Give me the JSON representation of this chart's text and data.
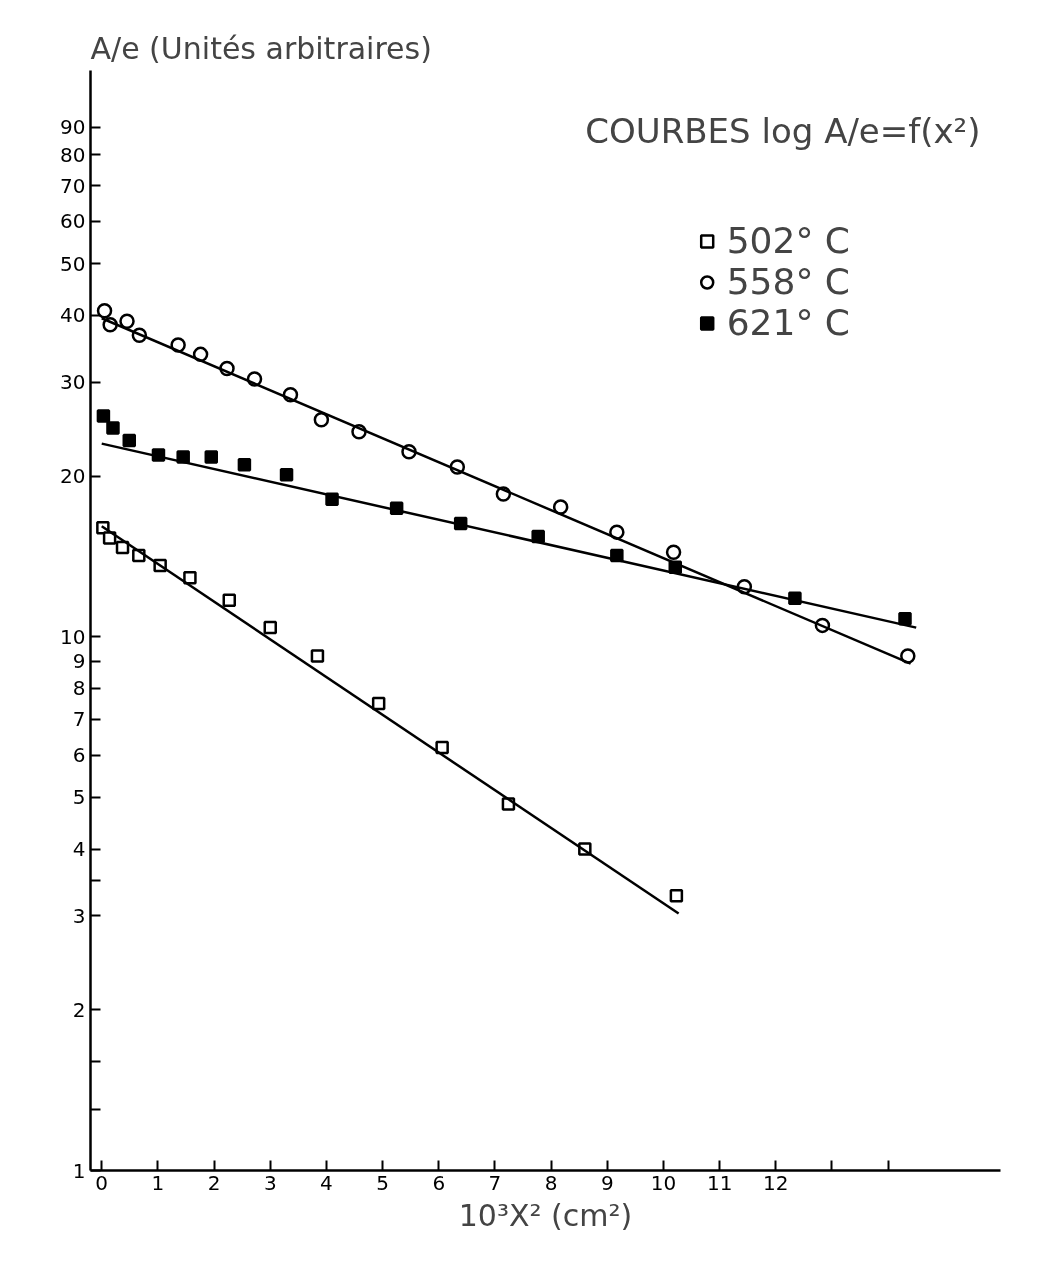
{
  "chart_data": {
    "type": "scatter",
    "title": "COURBES log A/e=f(x²)",
    "xlabel": "10³X² (cm²)",
    "ylabel": "A/e (Unités arbitraires)",
    "log": "y",
    "xlim": [
      -0.2,
      16
    ],
    "ylim": [
      1,
      115
    ],
    "xticks": [
      0,
      1,
      2,
      3,
      4,
      5,
      6,
      7,
      8,
      9,
      10,
      11,
      12,
      {
        "value": 13,
        "label": null
      },
      {
        "value": 14,
        "label": null
      }
    ],
    "yticks": [
      1,
      {
        "value": 1.3,
        "label": null
      },
      {
        "value": 1.6,
        "label": null
      },
      2,
      3,
      {
        "value": 3.5,
        "label": null
      },
      4,
      5,
      6,
      7,
      8,
      9,
      10,
      20,
      30,
      40,
      50,
      60,
      70,
      80,
      90
    ],
    "grid": false,
    "legend": "top right",
    "series": [
      {
        "name": "502° C",
        "color": "#ffffff",
        "marker": "square",
        "x": [
          0.02,
          0.14,
          0.37,
          0.66,
          1.04,
          1.57,
          2.27,
          3.0,
          3.84,
          4.93,
          6.06,
          7.24,
          8.6,
          10.23
        ],
        "values": [
          16.0,
          15.3,
          14.7,
          14.2,
          13.6,
          12.9,
          11.7,
          10.4,
          9.2,
          7.5,
          6.2,
          4.86,
          4.0,
          3.27
        ]
      },
      {
        "name": "558° C",
        "color": "#ffffff",
        "marker": "circle",
        "x": [
          0.05,
          0.15,
          0.45,
          0.67,
          1.36,
          1.76,
          2.23,
          2.72,
          3.36,
          3.91,
          4.58,
          5.47,
          6.33,
          7.15,
          8.17,
          9.17,
          10.18,
          11.44,
          12.83,
          14.35
        ],
        "values": [
          40.8,
          38.4,
          39.0,
          36.7,
          35.2,
          33.8,
          31.8,
          30.4,
          28.4,
          25.5,
          24.2,
          22.2,
          20.8,
          18.5,
          17.5,
          15.7,
          14.4,
          12.4,
          10.5,
          9.2
        ]
      },
      {
        "name": "621° C",
        "color": "#000000",
        "marker": "square",
        "x": [
          0.03,
          0.2,
          0.49,
          1.01,
          1.45,
          1.95,
          2.54,
          3.29,
          4.1,
          5.25,
          6.39,
          7.77,
          9.17,
          10.21,
          12.34,
          14.3
        ],
        "values": [
          25.9,
          24.6,
          23.3,
          21.9,
          21.7,
          21.7,
          21.0,
          20.1,
          18.1,
          17.4,
          16.3,
          15.4,
          14.2,
          13.5,
          11.8,
          10.8
        ]
      },
      {
        "type": "line",
        "color": "#000000",
        "x": [
          0,
          10.27
        ],
        "values": [
          16.1,
          3.03
        ]
      },
      {
        "type": "line",
        "color": "#000000",
        "x": [
          0,
          14.4
        ],
        "values": [
          39.5,
          8.9
        ]
      },
      {
        "type": "line",
        "color": "#000000",
        "x": [
          0,
          14.5
        ],
        "values": [
          23.0,
          10.4
        ]
      }
    ]
  }
}
